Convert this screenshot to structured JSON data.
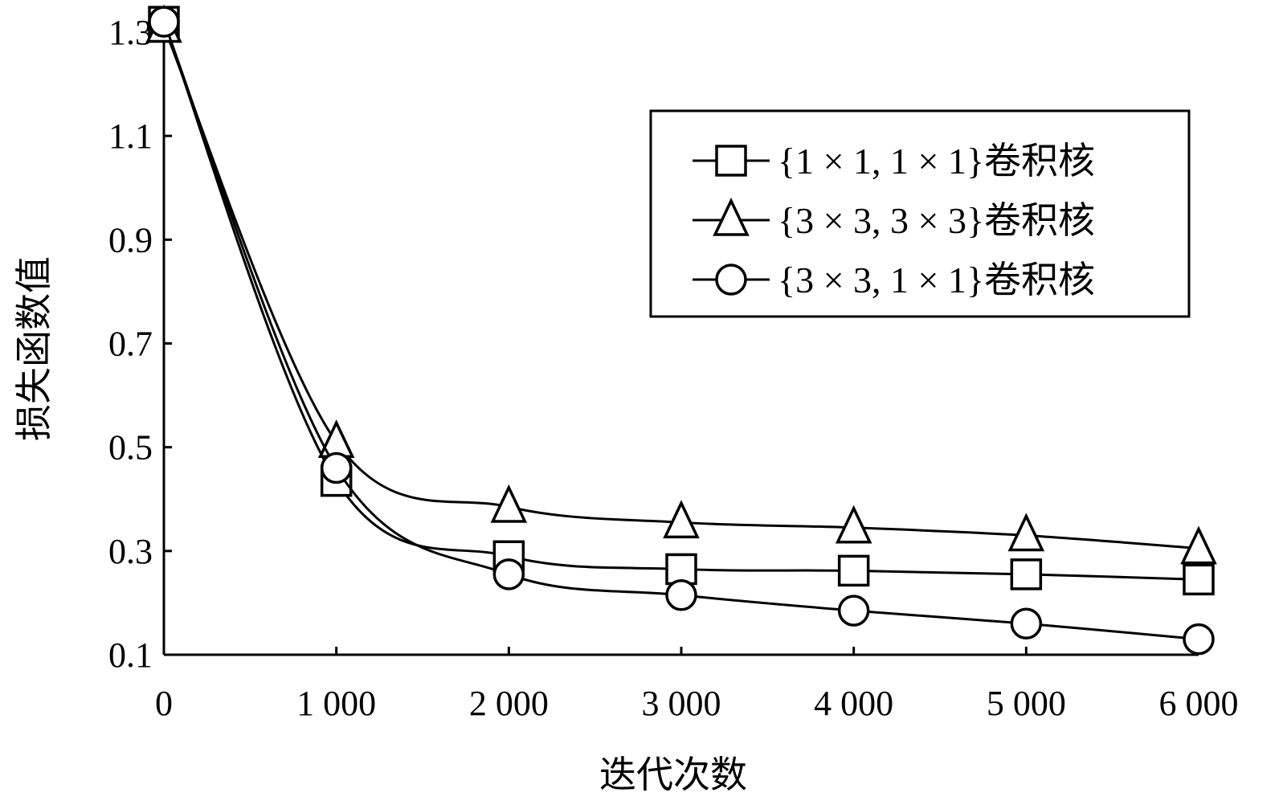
{
  "chart_data": {
    "type": "line",
    "xlabel": "迭代次数",
    "ylabel": "损失函数值",
    "x": [
      0,
      1000,
      2000,
      3000,
      4000,
      5000,
      6000
    ],
    "x_tick_labels": [
      "0",
      "1 000",
      "2 000",
      "3 000",
      "4 000",
      "5 000",
      "6 000"
    ],
    "xlim": [
      0,
      6000
    ],
    "ylim": [
      0.1,
      1.32
    ],
    "y_ticks": [
      0.1,
      0.3,
      0.5,
      0.7,
      0.9,
      1.1,
      1.3
    ],
    "y_tick_labels": [
      "0.1",
      "0.3",
      "0.5",
      "0.7",
      "0.9",
      "1.1",
      "1.3"
    ],
    "grid": false,
    "legend_position": "top-right",
    "series": [
      {
        "name": "{1 × 1, 1 × 1}卷积核",
        "marker": "square",
        "values": [
          1.32,
          0.435,
          0.29,
          0.265,
          0.262,
          0.255,
          0.245
        ]
      },
      {
        "name": "{3 × 3, 3 × 3}卷积核",
        "marker": "triangle",
        "values": [
          1.31,
          0.51,
          0.385,
          0.355,
          0.345,
          0.33,
          0.305
        ]
      },
      {
        "name": "{3 × 3, 1 × 1}卷积核",
        "marker": "circle",
        "values": [
          1.32,
          0.46,
          0.255,
          0.215,
          0.185,
          0.16,
          0.13
        ]
      }
    ]
  }
}
